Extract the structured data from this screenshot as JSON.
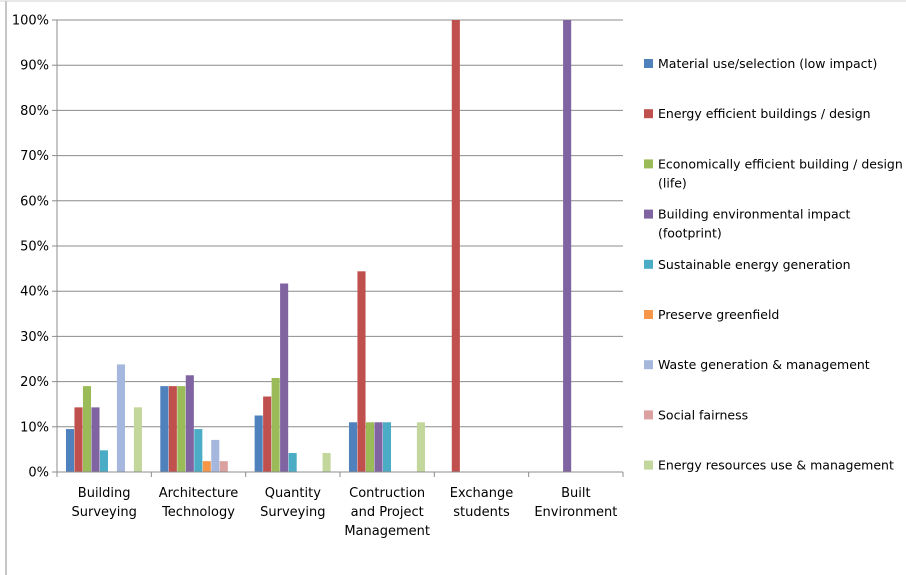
{
  "chart_data": {
    "type": "bar",
    "title": "",
    "xlabel": "",
    "ylabel": "",
    "ylim": [
      0,
      100
    ],
    "yticks": [
      "0%",
      "10%",
      "20%",
      "30%",
      "40%",
      "50%",
      "60%",
      "70%",
      "80%",
      "90%",
      "100%"
    ],
    "grid": true,
    "legend_position": "right",
    "categories": [
      [
        "Building",
        "Surveying"
      ],
      [
        "Architecture",
        "Technology"
      ],
      [
        "Quantity",
        "Surveying"
      ],
      [
        "Contruction",
        "and Project",
        "Management"
      ],
      [
        "Exchange",
        "students"
      ],
      [
        "Built",
        "Environment"
      ]
    ],
    "series": [
      {
        "name": [
          "Material use/selection (low impact)"
        ],
        "color": "#4F81BD",
        "values": [
          9.5,
          19,
          12.5,
          11,
          0,
          0
        ]
      },
      {
        "name": [
          "Energy efficient buildings / design"
        ],
        "color": "#C0504D",
        "values": [
          14.3,
          19,
          16.7,
          44.4,
          100,
          0
        ]
      },
      {
        "name": [
          "Economically efficient building / design",
          "(life)"
        ],
        "color": "#9BBB59",
        "values": [
          19,
          19,
          20.8,
          11,
          0,
          0
        ]
      },
      {
        "name": [
          "Building environmental impact",
          "(footprint)"
        ],
        "color": "#8064A2",
        "values": [
          14.3,
          21.4,
          41.7,
          11,
          0,
          100
        ]
      },
      {
        "name": [
          "Sustainable energy generation"
        ],
        "color": "#4BACC6",
        "values": [
          4.8,
          9.5,
          4.2,
          11,
          0,
          0
        ]
      },
      {
        "name": [
          "Preserve greenfield"
        ],
        "color": "#F79646",
        "values": [
          0,
          2.4,
          0,
          0,
          0,
          0
        ]
      },
      {
        "name": [
          "Waste generation & management"
        ],
        "color": "#A5B7DC",
        "values": [
          23.8,
          7.1,
          0,
          0,
          0,
          0
        ]
      },
      {
        "name": [
          "Social fairness"
        ],
        "color": "#DBA1A0",
        "values": [
          0,
          2.4,
          0,
          0,
          0,
          0
        ]
      },
      {
        "name": [
          "Energy resources use & management"
        ],
        "color": "#C3D69B",
        "values": [
          14.3,
          0,
          4.2,
          11,
          0,
          0
        ]
      }
    ]
  }
}
